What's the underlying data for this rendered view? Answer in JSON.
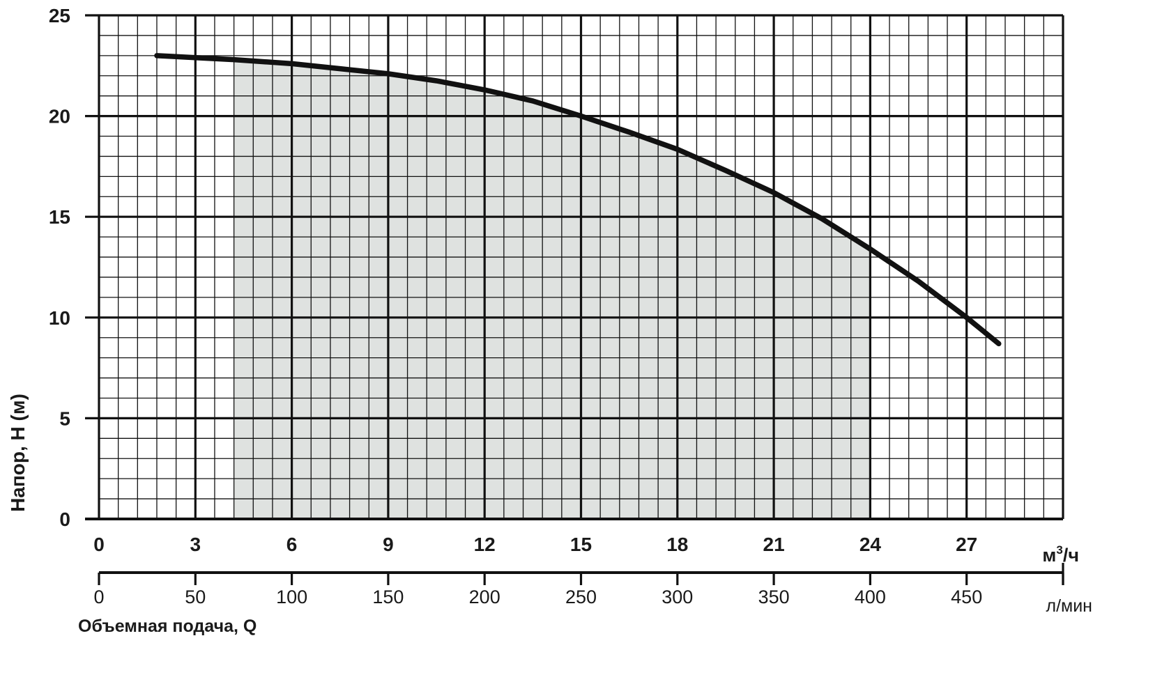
{
  "chart_data": {
    "type": "line",
    "xlabel": "Объемная подача, Q",
    "ylabel": "Напор, H (м)",
    "x_unit_primary": "м³/ч",
    "x_unit_secondary": "л/мин",
    "xlim": [
      0,
      30
    ],
    "ylim": [
      0,
      25
    ],
    "x_ticks": [
      "0",
      "3",
      "6",
      "9",
      "12",
      "15",
      "18",
      "21",
      "24",
      "27"
    ],
    "x_ticks_secondary": [
      "0",
      "50",
      "100",
      "150",
      "200",
      "250",
      "300",
      "350",
      "400",
      "450"
    ],
    "y_ticks": [
      "0",
      "5",
      "10",
      "15",
      "20",
      "25"
    ],
    "grid": true,
    "operating_range": [
      4.2,
      24
    ],
    "series": [
      {
        "x": [
          1.8,
          3,
          4.2,
          6,
          7.5,
          9,
          10.5,
          12,
          13.5,
          15,
          16.5,
          18,
          19.5,
          21,
          22.5,
          24,
          25.5,
          27,
          28.0
        ],
        "y": [
          23.0,
          22.9,
          22.8,
          22.6,
          22.35,
          22.1,
          21.75,
          21.3,
          20.75,
          20.0,
          19.2,
          18.35,
          17.3,
          16.2,
          14.9,
          13.4,
          11.8,
          10.0,
          8.7
        ]
      }
    ],
    "colors": {
      "line": "#111111",
      "grid": "#111111",
      "shade": "#dfe2e0"
    }
  }
}
